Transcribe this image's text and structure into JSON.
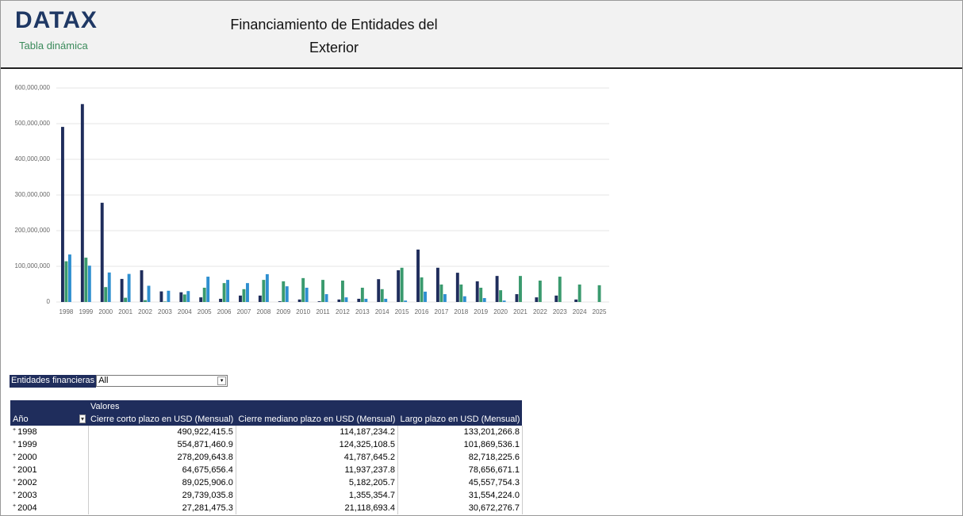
{
  "header": {
    "logo": "DATAX",
    "subtitle": "Tabla dinámica",
    "title": "Financiamiento de Entidades del Exterior"
  },
  "chart_data": {
    "type": "bar",
    "categories": [
      "1998",
      "1999",
      "2000",
      "2001",
      "2002",
      "2003",
      "2004",
      "2005",
      "2006",
      "2007",
      "2008",
      "2009",
      "2010",
      "2011",
      "2012",
      "2013",
      "2014",
      "2015",
      "2016",
      "2017",
      "2018",
      "2019",
      "2020",
      "2021",
      "2022",
      "2023",
      "2024",
      "2025"
    ],
    "series": [
      {
        "color": "#1f2d5c",
        "values": [
          490922415.5,
          554871460.9,
          278209643.8,
          64675656.4,
          89025906.0,
          29739035.8,
          27281475.3,
          13000000,
          9000000,
          18000000,
          18000000,
          2000000,
          7000000,
          2000000,
          7000000,
          9000000,
          64000000,
          89000000,
          147000000,
          96000000,
          82000000,
          58000000,
          73000000,
          22000000,
          13000000,
          18000000,
          7000000,
          null
        ]
      },
      {
        "color": "#3a9a6e",
        "values": [
          114187234.2,
          124325108.5,
          41787645.2,
          11937237.8,
          5182205.7,
          1355354.7,
          21118693.4,
          40000000,
          53000000,
          36000000,
          62000000,
          58000000,
          67000000,
          62000000,
          60000000,
          40000000,
          36000000,
          96000000,
          69000000,
          49000000,
          49000000,
          40000000,
          33000000,
          73000000,
          60000000,
          71000000,
          49000000,
          47000000
        ]
      },
      {
        "color": "#2e8fd0",
        "values": [
          133201266.8,
          101869536.1,
          82718225.6,
          78656671.1,
          45557754.3,
          31554224.0,
          30672276.7,
          71000000,
          62000000,
          53000000,
          78000000,
          44000000,
          40000000,
          22000000,
          13000000,
          9000000,
          9000000,
          4000000,
          29000000,
          22000000,
          16000000,
          11000000,
          4000000,
          null,
          null,
          null,
          null,
          null
        ]
      }
    ],
    "ylim": [
      0,
      600000000
    ],
    "yticks": [
      0,
      {
        "value": 100000000,
        "label": "100,000,000"
      },
      {
        "value": 200000000,
        "label": "200,000,000"
      },
      {
        "value": 300000000,
        "label": "300,000,000"
      },
      {
        "value": 400000000,
        "label": "400,000,000"
      },
      {
        "value": 500000000,
        "label": "500,000,000"
      },
      {
        "value": 600000000,
        "label": "600,000,000"
      }
    ],
    "grid": true
  },
  "filter": {
    "label": "Entidades financieras",
    "value": "All"
  },
  "table": {
    "group_header": "Valores",
    "columns": [
      "Año",
      "Cierre corto plazo en USD (Mensual)",
      "Cierre mediano plazo en USD (Mensual)",
      "Largo plazo en USD (Mensual)"
    ],
    "rows": [
      [
        "1998",
        "490,922,415.5",
        "114,187,234.2",
        "133,201,266.8"
      ],
      [
        "1999",
        "554,871,460.9",
        "124,325,108.5",
        "101,869,536.1"
      ],
      [
        "2000",
        "278,209,643.8",
        "41,787,645.2",
        "82,718,225.6"
      ],
      [
        "2001",
        "64,675,656.4",
        "11,937,237.8",
        "78,656,671.1"
      ],
      [
        "2002",
        "89,025,906.0",
        "5,182,205.7",
        "45,557,754.3"
      ],
      [
        "2003",
        "29,739,035.8",
        "1,355,354.7",
        "31,554,224.0"
      ],
      [
        "2004",
        "27,281,475.3",
        "21,118,693.4",
        "30,672,276.7"
      ]
    ]
  }
}
